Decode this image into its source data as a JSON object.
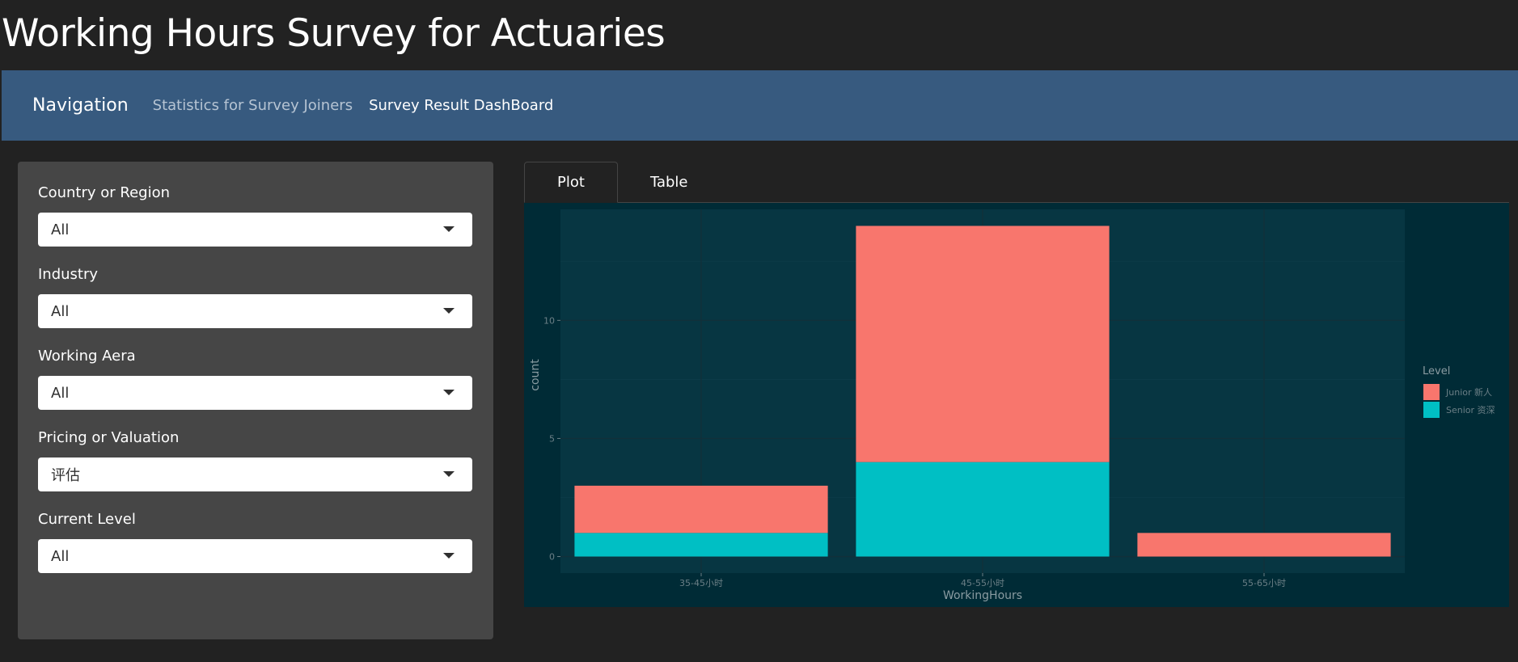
{
  "page": {
    "title": "Working Hours Survey for Actuaries"
  },
  "nav": {
    "brand": "Navigation",
    "links": [
      {
        "label": "Statistics for Survey Joiners"
      },
      {
        "label": "Survey Result DashBoard"
      }
    ]
  },
  "filters": [
    {
      "label": "Country or Region",
      "value": "All"
    },
    {
      "label": "Industry",
      "value": "All"
    },
    {
      "label": "Working Aera",
      "value": "All"
    },
    {
      "label": "Pricing or Valuation",
      "value": "评估"
    },
    {
      "label": "Current Level",
      "value": "All"
    }
  ],
  "tabs": [
    {
      "label": "Plot"
    },
    {
      "label": "Table"
    }
  ],
  "colors": {
    "junior": "#f8766d",
    "senior": "#00bfc4",
    "plot_bg": "#073642",
    "outer_bg": "#002b36"
  },
  "chart_data": {
    "type": "bar",
    "stacked": true,
    "categories": [
      "35-45小时",
      "45-55小时",
      "55-65小时"
    ],
    "series": [
      {
        "name": "Junior 新人",
        "values": [
          2,
          10,
          1
        ]
      },
      {
        "name": "Senior 资深",
        "values": [
          1,
          4,
          0
        ]
      }
    ],
    "xlabel": "WorkingHours",
    "ylabel": "count",
    "yticks": [
      0,
      5,
      10
    ],
    "ylim": [
      -0.7,
      14.7
    ],
    "legend_title": "Level",
    "legend_position": "right",
    "grid": true
  }
}
